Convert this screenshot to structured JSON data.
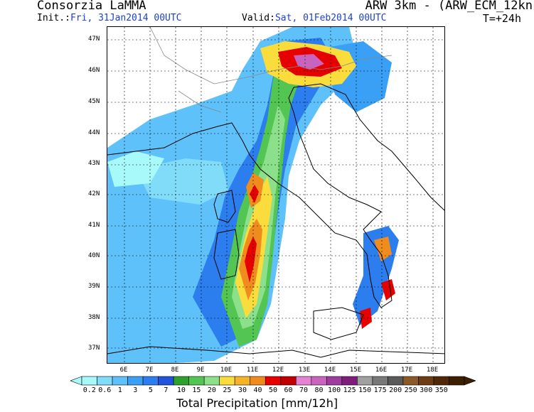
{
  "header": {
    "title_left": "Consorzia LaMMA",
    "title_right": "ARW 3km - (ARW_ECM_12kn",
    "init_label": "Init.:",
    "init_value": "Fri, 31Jan2014 00UTC",
    "valid_label": "Valid:",
    "valid_value": "Sat, 01Feb2014 00UTC",
    "step": "T=+24h"
  },
  "map": {
    "lat_labels": [
      "47N",
      "46N",
      "45N",
      "44N",
      "43N",
      "42N",
      "41N",
      "40N",
      "39N",
      "38N",
      "37N"
    ],
    "lon_labels": [
      "6E",
      "7E",
      "8E",
      "9E",
      "10E",
      "11E",
      "12E",
      "13E",
      "14E",
      "15E",
      "16E",
      "17E",
      "18E"
    ]
  },
  "legend": {
    "title": "Total Precipitation [mm/12h]",
    "values": [
      "0.2",
      "0.6",
      "1",
      "3",
      "5",
      "7",
      "10",
      "15",
      "20",
      "25",
      "30",
      "40",
      "50",
      "60",
      "70",
      "80",
      "100",
      "125",
      "150",
      "175",
      "200",
      "250",
      "300",
      "350"
    ],
    "colors": [
      "#a8fafa",
      "#81dcfa",
      "#5fc1fa",
      "#3aa0f5",
      "#2c7ded",
      "#2153dc",
      "#2ea02e",
      "#52c552",
      "#8ce08c",
      "#fadc3c",
      "#f5b428",
      "#f08c1e",
      "#e60000",
      "#c00000",
      "#e682d2",
      "#c864be",
      "#a03ca0",
      "#7d1e7d",
      "#a0a0a0",
      "#787878",
      "#5a5a5a",
      "#8c5a28",
      "#6e3c14",
      "#502808",
      "#3c1e00"
    ]
  }
}
